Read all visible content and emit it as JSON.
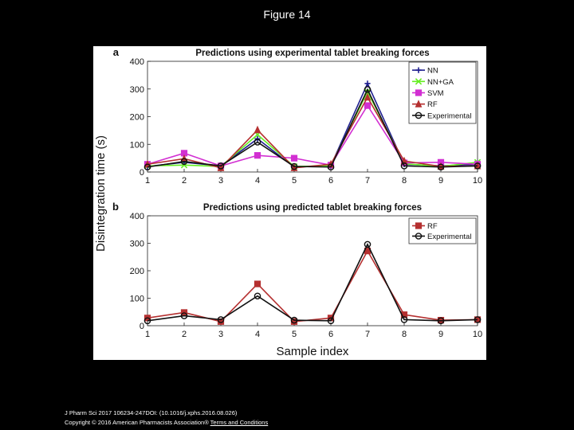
{
  "slide_title": "Figure 14",
  "footer": {
    "citation": "J Pharm Sci 2017 106234-247DOI: (10.1016/j.xphs.2016.08.026)",
    "copyright": "Copyright © 2016 American Pharmacists Association®",
    "terms_link": "Terms and Conditions"
  },
  "shared_ylabel": "Disintegration time (s)",
  "shared_xlabel": "Sample index",
  "chart_data": [
    {
      "type": "line",
      "panel_label": "a",
      "title": "Predictions using experimental tablet breaking forces",
      "x": [
        1,
        2,
        3,
        4,
        5,
        6,
        7,
        8,
        9,
        10
      ],
      "xlim": [
        1,
        10
      ],
      "ylim": [
        0,
        400
      ],
      "yticks": [
        0,
        100,
        200,
        300,
        400
      ],
      "xticks": [
        1,
        2,
        3,
        4,
        5,
        6,
        7,
        8,
        9,
        10
      ],
      "legend_position": "top-right",
      "series": [
        {
          "name": "NN",
          "color": "#1f1f8f",
          "marker": "plus",
          "values": [
            20,
            35,
            22,
            120,
            18,
            22,
            320,
            28,
            22,
            28
          ]
        },
        {
          "name": "NN+GA",
          "color": "#66ee22",
          "marker": "cross",
          "values": [
            22,
            25,
            20,
            135,
            20,
            22,
            290,
            30,
            20,
            35
          ]
        },
        {
          "name": "SVM",
          "color": "#d22fd2",
          "marker": "square",
          "values": [
            28,
            68,
            22,
            60,
            50,
            25,
            240,
            33,
            35,
            28
          ]
        },
        {
          "name": "RF",
          "color": "#b53030",
          "marker": "triangle",
          "values": [
            28,
            48,
            15,
            152,
            15,
            28,
            270,
            40,
            20,
            22
          ]
        },
        {
          "name": "Experimental",
          "color": "#111111",
          "marker": "circle",
          "values": [
            18,
            38,
            22,
            108,
            20,
            18,
            298,
            22,
            18,
            22
          ]
        }
      ]
    },
    {
      "type": "line",
      "panel_label": "b",
      "title": "Predictions using predicted tablet breaking forces",
      "x": [
        1,
        2,
        3,
        4,
        5,
        6,
        7,
        8,
        9,
        10
      ],
      "xlim": [
        1,
        10
      ],
      "ylim": [
        0,
        400
      ],
      "yticks": [
        0,
        100,
        200,
        300,
        400
      ],
      "xticks": [
        1,
        2,
        3,
        4,
        5,
        6,
        7,
        8,
        9,
        10
      ],
      "legend_position": "top-right",
      "series": [
        {
          "name": "RF",
          "color": "#b53030",
          "marker": "square",
          "values": [
            28,
            48,
            15,
            152,
            15,
            28,
            272,
            40,
            20,
            22
          ]
        },
        {
          "name": "Experimental",
          "color": "#111111",
          "marker": "circle",
          "values": [
            18,
            36,
            22,
            108,
            20,
            18,
            296,
            22,
            18,
            22
          ]
        }
      ]
    }
  ]
}
